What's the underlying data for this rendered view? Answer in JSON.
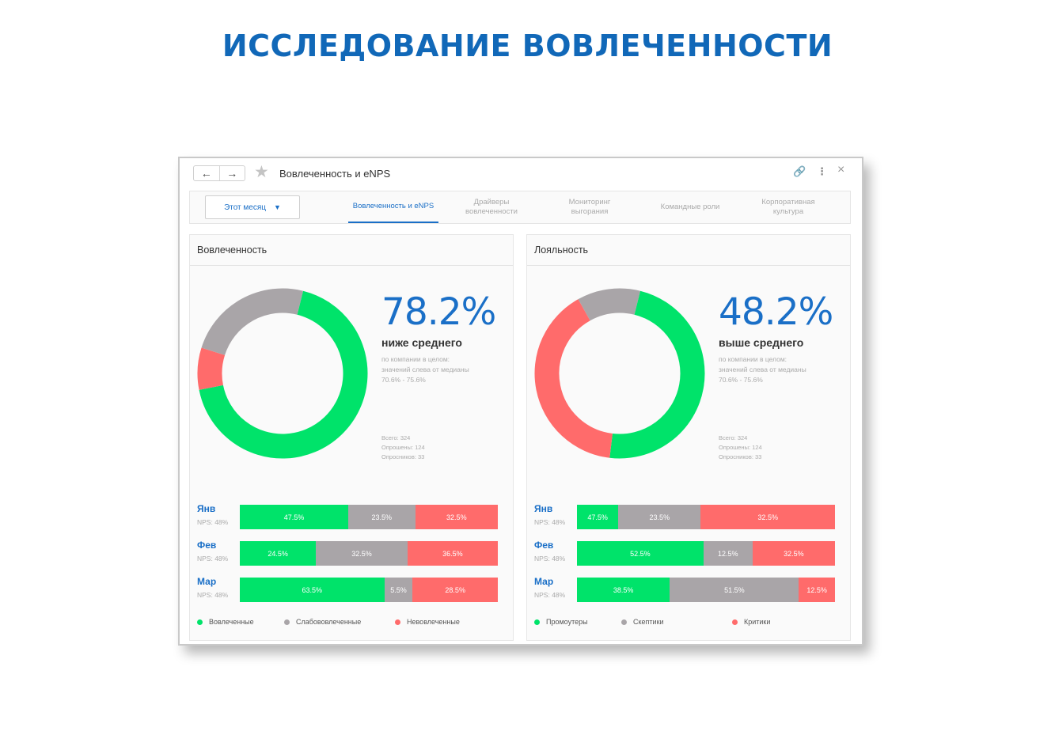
{
  "slide_title": "ИССЛЕДОВАНИЕ ВОВЛЕЧЕННОСТИ",
  "colors": {
    "green": "#00e36a",
    "gray": "#a9a5a8",
    "red": "#ff6b6b",
    "accent": "#1a6fc7",
    "title": "#1168b8"
  },
  "window": {
    "title": "Вовлеченность и eNPS",
    "back_icon": "arrow-left-icon",
    "forward_icon": "arrow-right-icon",
    "favorite_icon": "star-icon",
    "link_icon": "link-icon",
    "menu_icon": "more-vertical-icon",
    "close_icon": "close-icon",
    "glyphs": {
      "back": "←",
      "forward": "→",
      "star": "★",
      "link": "🔗",
      "menu": "⋮",
      "close": "×"
    }
  },
  "toolbar": {
    "period": "Этот месяц",
    "period_chevron": "⌄",
    "tabs": [
      {
        "label": "Вовлеченность и eNPS",
        "active": true
      },
      {
        "label": "Драйверы\nвовлеченности",
        "active": false
      },
      {
        "label": "Мониторинг\nвыгорания",
        "active": false
      },
      {
        "label": "Командные роли",
        "active": false
      },
      {
        "label": "Корпоративная\nкультура",
        "active": false
      }
    ]
  },
  "panels": [
    {
      "title": "Вовлеченность",
      "value": "78.2%",
      "comparison": "ниже среднего",
      "note": "по компании в целом:\nзначений слева от медианы\n70.6% - 75.6%",
      "stats": [
        "Всего: 324",
        "Опрошены: 124",
        "Опросников: 33"
      ],
      "donut": [
        {
          "name": "Вовлеченные",
          "value": 68,
          "color": "green"
        },
        {
          "name": "Невовлеченные",
          "value": 8,
          "color": "red"
        },
        {
          "name": "Слабововлеченные",
          "value": 24,
          "color": "gray"
        }
      ],
      "months": [
        {
          "name": "Янв",
          "nps": "NPS: 48%",
          "segments": [
            {
              "label": "47.5%",
              "value": 42,
              "color": "green"
            },
            {
              "label": "23.5%",
              "value": 26,
              "color": "gray"
            },
            {
              "label": "32.5%",
              "value": 32,
              "color": "red"
            }
          ]
        },
        {
          "name": "Фев",
          "nps": "NPS: 48%",
          "segments": [
            {
              "label": "24.5%",
              "value": 29.5,
              "color": "green"
            },
            {
              "label": "32.5%",
              "value": 35.5,
              "color": "gray"
            },
            {
              "label": "36.5%",
              "value": 35,
              "color": "red"
            }
          ]
        },
        {
          "name": "Мар",
          "nps": "NPS: 48%",
          "segments": [
            {
              "label": "63.5%",
              "value": 56,
              "color": "green"
            },
            {
              "label": "5.5%",
              "value": 11,
              "color": "gray"
            },
            {
              "label": "28.5%",
              "value": 33,
              "color": "red"
            }
          ]
        }
      ],
      "legend": [
        {
          "label": "Вовлеченные",
          "color": "green"
        },
        {
          "label": "Слабововлеченные",
          "color": "gray"
        },
        {
          "label": "Невовлеченные",
          "color": "red"
        }
      ]
    },
    {
      "title": "Лояльность",
      "value": "48.2%",
      "comparison": "выше среднего",
      "note": "по компании в целом:\nзначений слева от медианы\n70.6% - 75.6%",
      "stats": [
        "Всего: 324",
        "Опрошены: 124",
        "Опросников: 33"
      ],
      "donut": [
        {
          "name": "Промоутеры",
          "value": 48,
          "color": "green"
        },
        {
          "name": "Критики",
          "value": 40,
          "color": "red"
        },
        {
          "name": "Скептики",
          "value": 12,
          "color": "gray"
        }
      ],
      "months": [
        {
          "name": "Янв",
          "nps": "NPS: 48%",
          "segments": [
            {
              "label": "47.5%",
              "value": 16,
              "color": "green"
            },
            {
              "label": "23.5%",
              "value": 32,
              "color": "gray"
            },
            {
              "label": "32.5%",
              "value": 52,
              "color": "red"
            }
          ]
        },
        {
          "name": "Фев",
          "nps": "NPS: 48%",
          "segments": [
            {
              "label": "52.5%",
              "value": 49,
              "color": "green"
            },
            {
              "label": "12.5%",
              "value": 19,
              "color": "gray"
            },
            {
              "label": "32.5%",
              "value": 32,
              "color": "red"
            }
          ]
        },
        {
          "name": "Мар",
          "nps": "NPS: 48%",
          "segments": [
            {
              "label": "38.5%",
              "value": 36,
              "color": "green"
            },
            {
              "label": "51.5%",
              "value": 50,
              "color": "gray"
            },
            {
              "label": "12.5%",
              "value": 14,
              "color": "red"
            }
          ]
        }
      ],
      "legend": [
        {
          "label": "Промоутеры",
          "color": "green"
        },
        {
          "label": "Скептики",
          "color": "gray"
        },
        {
          "label": "Критики",
          "color": "red"
        }
      ]
    }
  ]
}
